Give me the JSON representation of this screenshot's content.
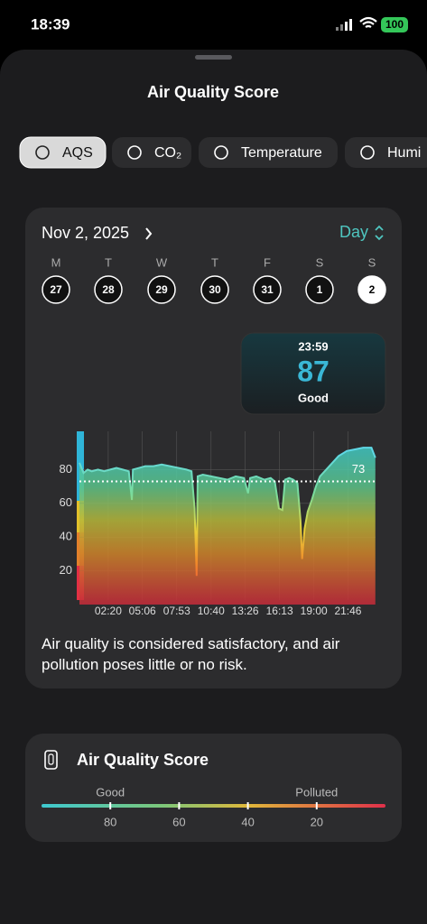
{
  "status_bar": {
    "time": "18:39",
    "battery": "100"
  },
  "header": {
    "title": "Air Quality Score"
  },
  "tabs": {
    "items": [
      "AQS",
      "CO₂",
      "Temperature",
      "Humi"
    ],
    "active": 0
  },
  "date_bar": {
    "date": "Nov 2, 2025",
    "range": "Day"
  },
  "week": {
    "weekdays": [
      "M",
      "T",
      "W",
      "T",
      "F",
      "S",
      "S"
    ],
    "days": [
      "27",
      "28",
      "29",
      "30",
      "31",
      "1",
      "2"
    ],
    "selected": 6
  },
  "tooltip": {
    "time": "23:59",
    "value": 87,
    "label": "Good"
  },
  "chart_data": {
    "type": "area",
    "x": [
      0,
      20,
      40,
      60,
      90,
      120,
      150,
      180,
      210,
      240,
      255,
      260,
      290,
      320,
      360,
      400,
      440,
      480,
      520,
      545,
      560,
      570,
      575,
      600,
      640,
      680,
      720,
      760,
      800,
      820,
      830,
      860,
      900,
      930,
      950,
      970,
      987,
      1000,
      1020,
      1040,
      1060,
      1075,
      1083,
      1095,
      1110,
      1130,
      1150,
      1170,
      1200,
      1230,
      1260,
      1300,
      1340,
      1380,
      1420,
      1439
    ],
    "values": [
      84,
      78,
      80,
      79,
      80,
      79,
      80,
      81,
      80,
      79,
      62,
      80,
      81,
      82,
      82,
      83,
      82,
      81,
      80,
      79,
      57,
      17,
      76,
      77,
      76,
      75,
      74,
      76,
      75,
      66,
      75,
      76,
      74,
      75,
      73,
      57,
      56,
      74,
      75,
      74,
      72,
      50,
      27,
      45,
      55,
      62,
      70,
      76,
      80,
      84,
      88,
      91,
      92,
      93,
      93,
      87
    ],
    "color": "#4fd1c5",
    "xlim": [
      0,
      1440
    ],
    "xticks": [
      {
        "value": 140,
        "label": "02:20"
      },
      {
        "value": 306,
        "label": "05:06"
      },
      {
        "value": 473,
        "label": "07:53"
      },
      {
        "value": 640,
        "label": "10:40"
      },
      {
        "value": 806,
        "label": "13:26"
      },
      {
        "value": 973,
        "label": "16:13"
      },
      {
        "value": 1140,
        "label": "19:00"
      },
      {
        "value": 1306,
        "label": "21:46"
      }
    ],
    "ylim": [
      0,
      100
    ],
    "yticks": [
      20,
      40,
      60,
      80
    ],
    "grid": true,
    "annotations": [
      {
        "value": 73
      }
    ]
  },
  "description": "Air quality is considered satisfactory, and air pollution poses little or no risk.",
  "scale_card": {
    "title": "Air Quality Score",
    "labels": [
      {
        "text": "Good",
        "value": 80
      },
      {
        "text": "Polluted",
        "value": 20
      }
    ],
    "range": [
      100,
      0
    ],
    "ticks": [
      80,
      60,
      40,
      20
    ]
  }
}
